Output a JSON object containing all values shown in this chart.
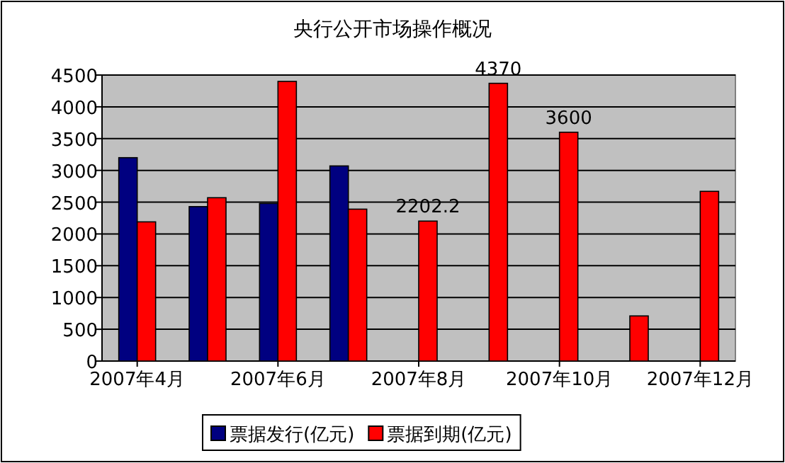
{
  "chart_data": {
    "type": "bar",
    "title": "央行公开市场操作概况",
    "categories": [
      "2007年4月",
      null,
      "2007年6月",
      null,
      "2007年8月",
      null,
      "2007年10月",
      null,
      "2007年12月"
    ],
    "series": [
      {
        "name": "票据发行(亿元)",
        "color": "#000080",
        "values": [
          3200,
          2430,
          2480,
          3070,
          null,
          null,
          null,
          null,
          null
        ]
      },
      {
        "name": "票据到期(亿元)",
        "color": "#ff0000",
        "values": [
          2190,
          2570,
          4400,
          2390,
          2202.2,
          4370,
          3600,
          710,
          2670
        ],
        "value_labels": [
          null,
          null,
          null,
          null,
          "2202.2",
          "4370",
          "3600",
          null,
          null
        ]
      }
    ],
    "ylim": [
      0,
      4500
    ],
    "yticks": [
      0,
      500,
      1000,
      1500,
      2000,
      2500,
      3000,
      3500,
      4000,
      4500
    ],
    "grid": "y",
    "legend": "bottom"
  }
}
